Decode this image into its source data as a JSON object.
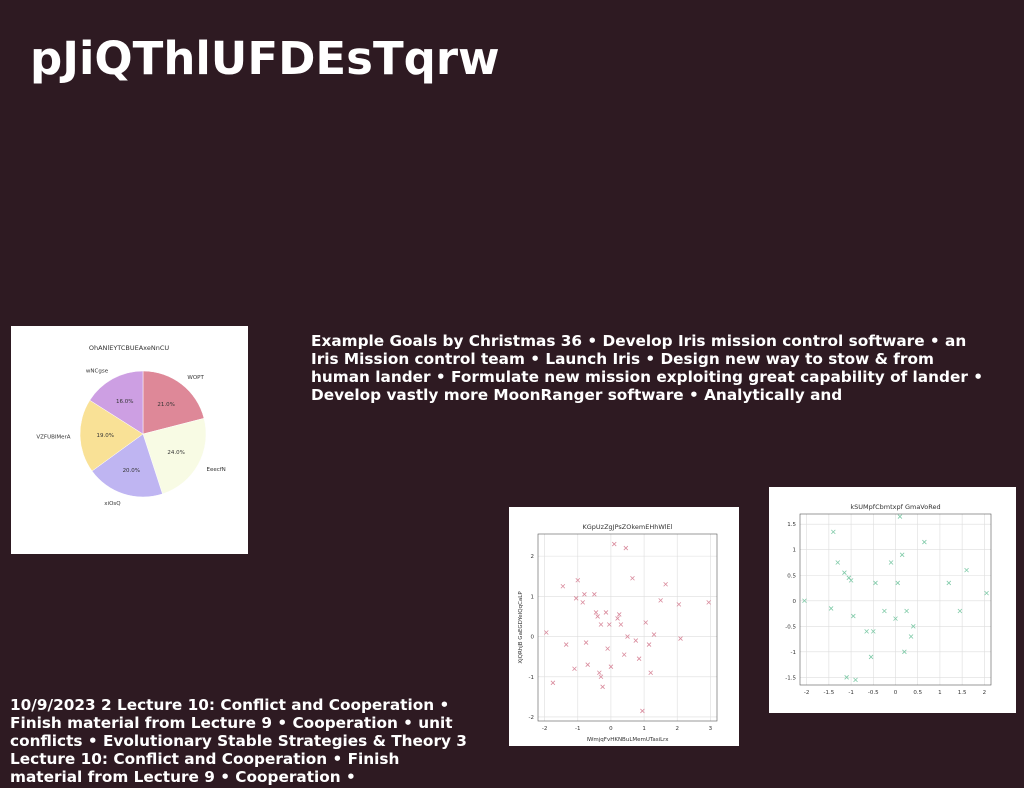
{
  "slide": {
    "title": "pJiQThlUFDEsTqrw",
    "body_text": "Example Goals by Christmas 36 • Develop Iris mission control software • an Iris Mission control team • Launch Iris • Design new way to stow & from human lander • Formulate new mission exploiting great capability of lander • Develop vastly more MoonRanger software • Analytically and",
    "notes_text": "10/9/2023 2 Lecture 10: Conflict and Cooperation • Finish material from Lecture 9 • Cooperation • unit conflicts • Evolutionary Stable Strategies & Theory 3 Lecture 10: Conflict and Cooperation • Finish material from Lecture 9 • Cooperation •"
  },
  "chart_data": [
    {
      "type": "pie",
      "title": "OhANlEYTCBUEAxeNnCU",
      "labels": [
        "WOPT",
        "EeecfN",
        "xiOsQ",
        "VZFUBlMerA",
        "wNCgse"
      ],
      "values": [
        21.0,
        24.0,
        20.0,
        19.0,
        16.0
      ],
      "value_labels": [
        "21.0%",
        "24.0%",
        "20.0%",
        "19.0%",
        "16.0%"
      ],
      "colors": [
        "#de8898",
        "#f8fbe4",
        "#bfb5f2",
        "#f9e196",
        "#cd9fe3"
      ]
    },
    {
      "type": "scatter",
      "title": "KGpUzZgJPsZOkemEHhWlEl",
      "xlabel": "lWmjqFvHKNBuLMemUTasiLrx",
      "ylabel": "XjQRhjB GaEGDYeIQqCaLP",
      "xlim": [
        -2.2,
        3.2
      ],
      "ylim": [
        -2.1,
        2.55
      ],
      "xticks": [
        -2,
        -1,
        0,
        1,
        2,
        3
      ],
      "yticks": [
        -2,
        -1,
        0,
        1,
        2
      ],
      "marker": "x",
      "color": "#d98a9c",
      "x": [
        -1.95,
        -1.75,
        -1.45,
        -1.35,
        -1.1,
        -1.05,
        -1.0,
        -0.85,
        -0.8,
        -0.75,
        -0.7,
        -0.5,
        -0.45,
        -0.4,
        -0.35,
        -0.3,
        -0.3,
        -0.25,
        -0.15,
        -0.1,
        -0.05,
        0.0,
        0.1,
        0.2,
        0.25,
        0.3,
        0.4,
        0.45,
        0.5,
        0.65,
        0.75,
        0.85,
        0.95,
        1.05,
        1.15,
        1.2,
        1.3,
        1.5,
        1.65,
        2.05,
        2.1,
        2.95
      ],
      "y": [
        0.1,
        -1.15,
        1.25,
        -0.2,
        -0.8,
        0.95,
        1.4,
        0.85,
        1.05,
        -0.15,
        -0.7,
        1.05,
        0.6,
        0.5,
        -0.9,
        -1.0,
        0.3,
        -1.25,
        0.6,
        -0.3,
        0.3,
        -0.75,
        2.3,
        0.45,
        0.55,
        0.3,
        -0.45,
        2.2,
        0.0,
        1.45,
        -0.1,
        -0.55,
        -1.85,
        0.35,
        -0.2,
        -0.9,
        0.05,
        0.9,
        1.3,
        0.8,
        -0.05,
        0.85
      ]
    },
    {
      "type": "scatter",
      "title": "kSUMpfCbmtxpf GmaVoRed",
      "xlim": [
        -2.15,
        2.15
      ],
      "ylim": [
        -1.65,
        1.7
      ],
      "xticks": [
        -2.0,
        -1.5,
        -1.0,
        -0.5,
        0.0,
        0.5,
        1.0,
        1.5,
        2.0
      ],
      "yticks": [
        -1.5,
        -1.0,
        -0.5,
        0.0,
        0.5,
        1.0,
        1.5
      ],
      "marker": "x",
      "color": "#7fcaa8",
      "x": [
        -2.05,
        -1.45,
        -1.4,
        -1.3,
        -1.15,
        -1.1,
        -1.05,
        -1.0,
        -0.95,
        -0.9,
        -0.65,
        -0.55,
        -0.5,
        -0.45,
        -0.25,
        -0.1,
        0.0,
        0.05,
        0.1,
        0.15,
        0.2,
        0.25,
        0.35,
        0.4,
        0.65,
        1.2,
        1.45,
        1.6,
        2.05
      ],
      "y": [
        0.0,
        -0.15,
        1.35,
        0.75,
        0.55,
        -1.5,
        0.45,
        0.4,
        -0.3,
        -1.55,
        -0.6,
        -1.1,
        -0.6,
        0.35,
        -0.2,
        0.75,
        -0.35,
        0.35,
        1.65,
        0.9,
        -1.0,
        -0.2,
        -0.7,
        -0.5,
        1.15,
        0.35,
        -0.2,
        0.6,
        0.15
      ]
    }
  ]
}
